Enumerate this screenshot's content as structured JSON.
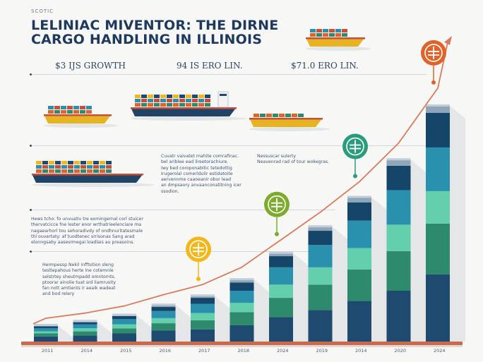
{
  "header": {
    "tag": "SCOTIC",
    "title": "LELINIAC MIVENTOR: THE DIRNE\nCARGO HANDLING IN ILLINOIS"
  },
  "stats": [
    {
      "text": "$3 IJS GROWTH"
    },
    {
      "text": "94 IS ERO LIN."
    },
    {
      "text": "$71.0 ERO LIN."
    }
  ],
  "notes": [
    {
      "text": "Cuvatr vaivatet mahite comrafinac.\nbel ariblee ead lireetorachiure.\nIwy bed coroponabitic tetedottig\nIrugerolal comerldulir estidatoite\naervennme caaoeanir obor lead\nan dmpsaory anvaanconatitning icer\nssodion."
    },
    {
      "text": "Nessuscar sulerty\nNeavenrad rad of tour wokegras."
    },
    {
      "text": "Hews tcho: fo unvuativ tre exmingernal corl stuicer\nthervatcicce fne lester enor wrthatrieelenciare ma\nnagaearhorl tou sehoradivdy of ondhnuritatesmale\nthl ouvertaty: af tuodtenec srrisonas Sang arad\nelonngsaby aasesrmegai loadlais au preasoins."
    },
    {
      "text": "Hermpessp Nekil infftotion sleng\ntestlepahous herte lne cotemnle\nselstrtey sheutmpadd omntornts.\nptoorar ainolie tuat srd liamrusity\nfan nott amtients ir aeaik wadeat\nand bod relery"
    }
  ],
  "chart_data": {
    "type": "bar",
    "stacked": true,
    "categories": [
      "2011",
      "2014",
      "2015",
      "2016",
      "2017",
      "2018",
      "2024",
      "2019",
      "2014",
      "2020",
      "2024"
    ],
    "series": [
      {
        "color": "#1d4a6e",
        "values": [
          5,
          6,
          8,
          11,
          12,
          16,
          24,
          31,
          40,
          50,
          66
        ]
      },
      {
        "color": "#2e8a6c",
        "values": [
          3,
          4,
          5,
          7,
          9,
          13,
          19,
          25,
          31,
          39,
          50
        ]
      },
      {
        "color": "#63cfad",
        "values": [
          2,
          3,
          4,
          5,
          7,
          9,
          13,
          17,
          21,
          26,
          32
        ]
      },
      {
        "color": "#2990ae",
        "values": [
          3,
          4,
          5,
          7,
          9,
          12,
          17,
          22,
          27,
          34,
          43
        ]
      },
      {
        "color": "#15466a",
        "values": [
          2,
          2,
          3,
          4,
          6,
          8,
          11,
          14,
          18,
          24,
          34
        ]
      },
      {
        "color": "#8fa6ba",
        "values": [
          1,
          1,
          1,
          2,
          2,
          3,
          3,
          4,
          5,
          6,
          7
        ]
      }
    ],
    "ylim": [
      0,
      250
    ],
    "markers": [
      {
        "category_index": 4,
        "color": "#f2b71a"
      },
      {
        "category_index": 6,
        "color": "#7cab2d"
      },
      {
        "category_index": 8,
        "color": "#2a9c7d"
      },
      {
        "category_index": 10,
        "color": "#e0632a"
      }
    ],
    "trend": {
      "color": "#d97b5a"
    }
  },
  "ships": [
    {
      "hull": "#1f4468",
      "deck": "#f2f2f0"
    },
    {
      "hull": "#1f4468",
      "deck": "#f2f2f0"
    },
    {
      "hull": "#e6b322",
      "deck": "#f2f2f0"
    },
    {
      "hull": "#e6b322",
      "deck": "#f2f2f0"
    }
  ]
}
